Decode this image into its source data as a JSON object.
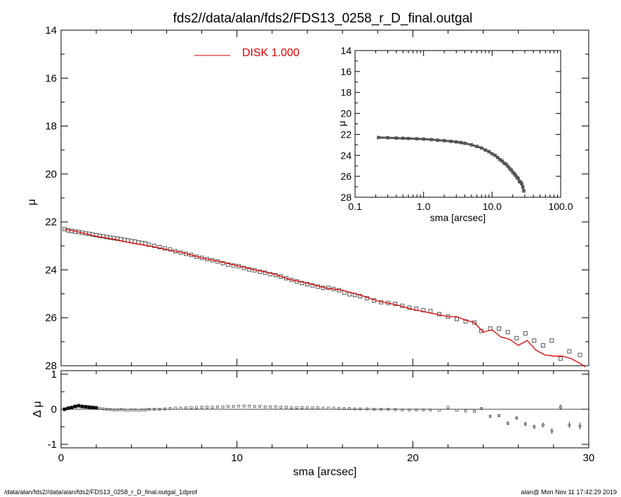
{
  "title": "fds2//data/alan/fds2/FDS13_0258_r_D_final.outgal",
  "footer_left": "/data/alan/fds2//data/alan/fds2/FDS13_0258_r_D_final.outgal_1dprof",
  "footer_right": "alan@  Mon Nov 11 17:42:29 2019",
  "colors": {
    "model": "#e00000",
    "points": "#555555",
    "axes": "#000000"
  },
  "chart_data": [
    {
      "type": "scatter",
      "title": "",
      "xlabel": "sma [arcsec]",
      "ylabel": "μ",
      "xlim": [
        0,
        30
      ],
      "ylim": [
        28,
        14
      ],
      "y_inverted": true,
      "xticks": [
        0,
        10,
        20,
        30
      ],
      "yticks": [
        14,
        16,
        18,
        20,
        22,
        24,
        26,
        28
      ],
      "legend": {
        "position": "top-center",
        "label": "DISK  1.000"
      },
      "series": [
        {
          "kind": "points",
          "x": [
            0.2,
            0.4,
            0.6,
            0.8,
            1.0,
            1.2,
            1.4,
            1.6,
            1.8,
            2.0,
            2.2,
            2.4,
            2.6,
            2.8,
            3.0,
            3.2,
            3.4,
            3.6,
            3.8,
            4.0,
            4.2,
            4.4,
            4.6,
            4.8,
            5.0,
            5.3,
            5.6,
            5.9,
            6.2,
            6.5,
            6.8,
            7.1,
            7.4,
            7.7,
            8.0,
            8.3,
            8.6,
            8.9,
            9.2,
            9.5,
            9.8,
            10.1,
            10.4,
            10.7,
            11.0,
            11.3,
            11.6,
            11.9,
            12.2,
            12.5,
            12.8,
            13.1,
            13.4,
            13.7,
            14.0,
            14.3,
            14.6,
            14.9,
            15.2,
            15.5,
            15.8,
            16.1,
            16.4,
            16.7,
            17.0,
            17.4,
            17.8,
            18.2,
            18.6,
            19.0,
            19.4,
            19.8,
            20.2,
            20.6,
            21.0,
            21.5,
            22.0,
            22.5,
            23.0,
            23.5,
            23.9,
            24.4,
            24.9,
            25.4,
            25.9,
            26.4,
            26.9,
            27.4,
            27.9,
            28.4,
            28.9,
            29.5
          ],
          "y": [
            22.3,
            22.35,
            22.38,
            22.4,
            22.42,
            22.45,
            22.48,
            22.5,
            22.53,
            22.55,
            22.58,
            22.6,
            22.63,
            22.66,
            22.68,
            22.7,
            22.72,
            22.75,
            22.77,
            22.8,
            22.82,
            22.85,
            22.88,
            22.9,
            22.95,
            23.0,
            23.05,
            23.1,
            23.15,
            23.22,
            23.28,
            23.33,
            23.38,
            23.45,
            23.5,
            23.55,
            23.6,
            23.65,
            23.72,
            23.78,
            23.82,
            23.85,
            23.92,
            23.98,
            24.02,
            24.08,
            24.12,
            24.18,
            24.22,
            24.28,
            24.35,
            24.42,
            24.48,
            24.55,
            24.6,
            24.65,
            24.7,
            24.75,
            24.75,
            24.8,
            24.85,
            24.95,
            25.02,
            25.05,
            25.1,
            25.18,
            25.28,
            25.35,
            25.38,
            25.42,
            25.5,
            25.58,
            25.62,
            25.68,
            25.72,
            25.85,
            25.95,
            26.05,
            26.15,
            26.2,
            26.55,
            26.45,
            26.45,
            26.6,
            26.85,
            26.65,
            26.95,
            27.15,
            26.95,
            27.7,
            27.4,
            27.55
          ]
        },
        {
          "kind": "model",
          "name": "DISK  1.000",
          "x": [
            0.2,
            1.0,
            2.0,
            3.0,
            4.0,
            5.0,
            6.0,
            7.0,
            8.0,
            9.0,
            10.0,
            11.0,
            12.0,
            13.0,
            14.0,
            15.0,
            16.0,
            17.0,
            18.0,
            19.0,
            20.0,
            21.0,
            22.0,
            22.5,
            23.0,
            23.5,
            24.0,
            24.5,
            25.0,
            25.5,
            26.0,
            26.5,
            27.0,
            27.5,
            28.0,
            28.5,
            29.0,
            29.5,
            29.8
          ],
          "y": [
            22.3,
            22.42,
            22.6,
            22.72,
            22.88,
            23.0,
            23.15,
            23.3,
            23.5,
            23.65,
            23.82,
            24.0,
            24.15,
            24.4,
            24.55,
            24.75,
            24.85,
            25.05,
            25.3,
            25.45,
            25.65,
            25.8,
            25.95,
            25.95,
            26.1,
            26.2,
            26.6,
            26.5,
            26.8,
            26.9,
            27.15,
            26.95,
            27.35,
            27.55,
            27.6,
            27.6,
            27.7,
            27.9,
            28.05
          ]
        }
      ]
    },
    {
      "type": "scatter",
      "title": "",
      "xlabel": "sma [arcsec]",
      "ylabel": "μ",
      "x_scale": "log",
      "xlim": [
        0.1,
        100
      ],
      "ylim": [
        28,
        14
      ],
      "y_inverted": true,
      "xticks": [
        "0.1",
        "1.0",
        "10.0",
        "100.0"
      ],
      "yticks": [
        14,
        16,
        18,
        20,
        22,
        24,
        26,
        28
      ],
      "series": [
        {
          "kind": "points",
          "x": [
            0.22,
            0.3,
            0.4,
            0.5,
            0.6,
            0.8,
            1.0,
            1.3,
            1.6,
            2.0,
            2.5,
            3.0,
            3.5,
            4.0,
            5.0,
            6.0,
            7.0,
            8.0,
            9.0,
            10.0,
            11.0,
            12.0,
            13.0,
            14.0,
            15.0,
            16.0,
            17.0,
            18.0,
            19.0,
            20.0,
            21.0,
            22.0,
            23.0,
            24.0,
            25.0,
            26.0,
            27.0,
            28.0,
            29.0
          ],
          "y": [
            22.3,
            22.32,
            22.35,
            22.37,
            22.39,
            22.42,
            22.45,
            22.5,
            22.55,
            22.6,
            22.66,
            22.72,
            22.78,
            22.85,
            23.0,
            23.15,
            23.3,
            23.5,
            23.65,
            23.85,
            24.0,
            24.2,
            24.4,
            24.55,
            24.75,
            24.85,
            25.05,
            25.25,
            25.4,
            25.6,
            25.75,
            25.9,
            26.1,
            26.2,
            26.5,
            26.55,
            26.7,
            27.0,
            27.4
          ]
        }
      ]
    },
    {
      "type": "scatter",
      "title": "",
      "xlabel": "sma [arcsec]",
      "ylabel": "Δ μ",
      "xlim": [
        0,
        30
      ],
      "ylim": [
        -1.1,
        1.1
      ],
      "yticks": [
        -1,
        0,
        1
      ],
      "zero_line": true,
      "series": [
        {
          "kind": "residuals",
          "x": [
            0.2,
            0.4,
            0.6,
            0.8,
            1.0,
            1.2,
            1.4,
            1.6,
            1.8,
            2.0,
            2.2,
            2.4,
            2.6,
            2.8,
            3.0,
            3.2,
            3.4,
            3.6,
            3.8,
            4.0,
            4.2,
            4.4,
            4.6,
            4.8,
            5.0,
            5.3,
            5.6,
            5.9,
            6.2,
            6.5,
            6.8,
            7.1,
            7.4,
            7.7,
            8.0,
            8.3,
            8.6,
            8.9,
            9.2,
            9.5,
            9.8,
            10.1,
            10.4,
            10.7,
            11.0,
            11.3,
            11.6,
            11.9,
            12.2,
            12.5,
            12.8,
            13.1,
            13.4,
            13.7,
            14.0,
            14.3,
            14.6,
            14.9,
            15.2,
            15.5,
            15.8,
            16.1,
            16.4,
            16.7,
            17.0,
            17.4,
            17.8,
            18.2,
            18.6,
            19.0,
            19.4,
            19.8,
            20.2,
            20.6,
            21.0,
            21.5,
            22.0,
            22.5,
            23.0,
            23.5,
            23.9,
            24.4,
            24.9,
            25.4,
            25.9,
            26.4,
            26.9,
            27.4,
            27.9,
            28.4,
            28.9,
            29.5
          ],
          "y": [
            0.0,
            0.03,
            0.05,
            0.08,
            0.1,
            0.08,
            0.07,
            0.06,
            0.05,
            0.04,
            0.02,
            0.01,
            0.0,
            -0.01,
            -0.02,
            -0.02,
            -0.01,
            -0.02,
            -0.03,
            -0.02,
            -0.02,
            -0.03,
            -0.02,
            -0.02,
            0.0,
            0.0,
            0.0,
            0.01,
            0.02,
            0.03,
            0.03,
            0.04,
            0.05,
            0.05,
            0.06,
            0.06,
            0.06,
            0.07,
            0.07,
            0.08,
            0.08,
            0.09,
            0.09,
            0.09,
            0.08,
            0.08,
            0.07,
            0.07,
            0.07,
            0.06,
            0.06,
            0.05,
            0.05,
            0.05,
            0.04,
            0.04,
            0.04,
            0.03,
            0.03,
            0.03,
            0.02,
            0.02,
            0.02,
            0.01,
            0.01,
            0.01,
            0.0,
            0.0,
            0.0,
            -0.01,
            -0.02,
            -0.02,
            -0.02,
            -0.02,
            -0.02,
            -0.03,
            0.05,
            -0.03,
            -0.05,
            -0.06,
            0.02,
            -0.2,
            -0.18,
            -0.4,
            -0.25,
            -0.42,
            -0.5,
            -0.45,
            -0.62,
            0.06,
            -0.45,
            -0.48
          ],
          "err": [
            0.01,
            0.01,
            0.01,
            0.01,
            0.01,
            0.01,
            0.01,
            0.01,
            0.01,
            0.01,
            0.01,
            0.01,
            0.01,
            0.01,
            0.01,
            0.01,
            0.01,
            0.01,
            0.01,
            0.01,
            0.01,
            0.01,
            0.01,
            0.01,
            0.01,
            0.01,
            0.01,
            0.01,
            0.01,
            0.01,
            0.01,
            0.01,
            0.01,
            0.01,
            0.01,
            0.01,
            0.01,
            0.01,
            0.01,
            0.01,
            0.01,
            0.01,
            0.01,
            0.01,
            0.01,
            0.01,
            0.01,
            0.01,
            0.01,
            0.01,
            0.01,
            0.01,
            0.01,
            0.01,
            0.01,
            0.01,
            0.01,
            0.01,
            0.01,
            0.01,
            0.01,
            0.01,
            0.01,
            0.01,
            0.01,
            0.01,
            0.01,
            0.01,
            0.01,
            0.01,
            0.01,
            0.01,
            0.01,
            0.01,
            0.02,
            0.02,
            0.02,
            0.02,
            0.02,
            0.02,
            0.03,
            0.04,
            0.04,
            0.05,
            0.05,
            0.06,
            0.07,
            0.08,
            0.08,
            0.09,
            0.1,
            0.1
          ]
        }
      ]
    }
  ]
}
